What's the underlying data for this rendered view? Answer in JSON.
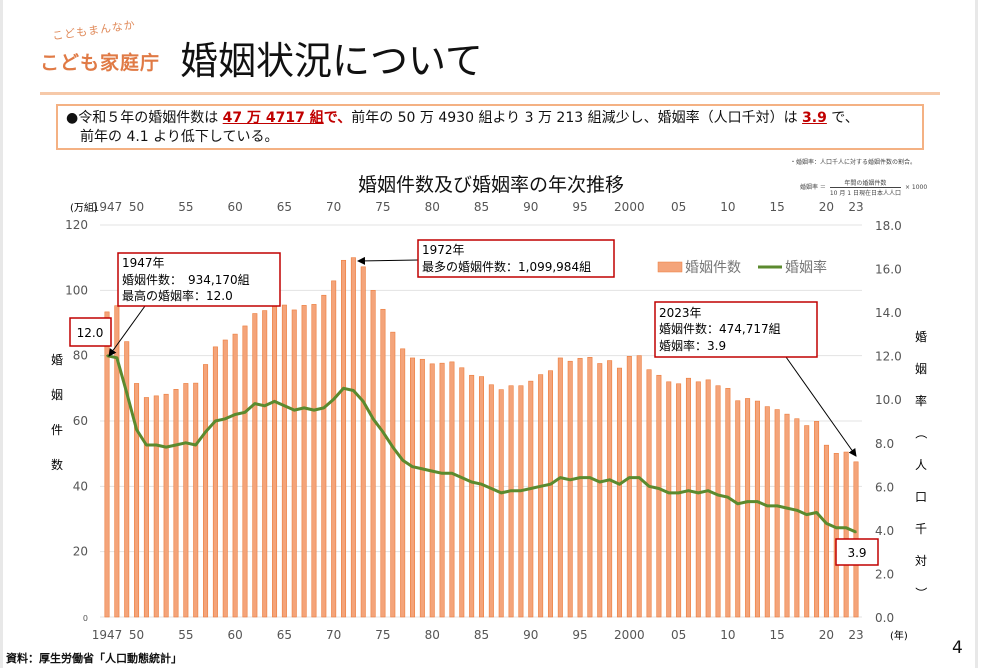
{
  "logo": {
    "tagline": "こどもまんなか",
    "name": "こども家庭庁"
  },
  "title": "婚姻状況について",
  "summary": {
    "bullet": "●",
    "p1": "令和５年の婚姻件数は ",
    "h1": "47 万 4717 組",
    "h1b": "で、",
    "p2": "前年の 50 万 4930 組より 3 万 213 組減少し、婚姻率（人口千対）は ",
    "h2": "3.9",
    "p3": " で、",
    "line2": "前年の 4.1 より低下している。"
  },
  "notes": {
    "definition": "・婚姻率：人口千人に対する婚姻件数の割合。",
    "formula_label": "婚姻率 ＝",
    "formula_num": "年間の婚姻件数",
    "formula_den": "10 月 1 日現在日本人人口",
    "formula_mult": "× 1000"
  },
  "footer": "資料：厚生労働省「人口動態統計」",
  "page_number": "4",
  "colors": {
    "bar": "#f4a47a",
    "bar_edge": "#ec7c3c",
    "line": "#5b8a2e",
    "callout_border": "#c00000",
    "accent": "#f4b183"
  },
  "chart_data": {
    "type": "bar+line",
    "title": "婚姻件数及び婚姻率の年次推移",
    "xlabel": "(年)",
    "ylabel_left_unit": "(万組)",
    "ylabel_left": "婚姻件数",
    "ylabel_right": "婚姻率（人口千対）",
    "ylim_left": [
      0,
      120
    ],
    "ylim_right": [
      0,
      18
    ],
    "yticks_left": [
      "0",
      "20",
      "40",
      "60",
      "80",
      "100",
      "120"
    ],
    "yticks_right": [
      "0.0",
      "2.0",
      "4.0",
      "6.0",
      "8.0",
      "10.0",
      "12.0",
      "14.0",
      "16.0",
      "18.0"
    ],
    "xtick_labels": [
      {
        "year": 1947,
        "label": "1947"
      },
      {
        "year": 1950,
        "label": "50"
      },
      {
        "year": 1955,
        "label": "55"
      },
      {
        "year": 1960,
        "label": "60"
      },
      {
        "year": 1965,
        "label": "65"
      },
      {
        "year": 1970,
        "label": "70"
      },
      {
        "year": 1975,
        "label": "75"
      },
      {
        "year": 1980,
        "label": "80"
      },
      {
        "year": 1985,
        "label": "85"
      },
      {
        "year": 1990,
        "label": "90"
      },
      {
        "year": 1995,
        "label": "95"
      },
      {
        "year": 2000,
        "label": "2000"
      },
      {
        "year": 2005,
        "label": "05"
      },
      {
        "year": 2010,
        "label": "10"
      },
      {
        "year": 2015,
        "label": "15"
      },
      {
        "year": 2020,
        "label": "20"
      },
      {
        "year": 2023,
        "label": "23"
      }
    ],
    "grid": true,
    "legend_position": "top-right",
    "x": [
      1947,
      1948,
      1949,
      1950,
      1951,
      1952,
      1953,
      1954,
      1955,
      1956,
      1957,
      1958,
      1959,
      1960,
      1961,
      1962,
      1963,
      1964,
      1965,
      1966,
      1967,
      1968,
      1969,
      1970,
      1971,
      1972,
      1973,
      1974,
      1975,
      1976,
      1977,
      1978,
      1979,
      1980,
      1981,
      1982,
      1983,
      1984,
      1985,
      1986,
      1987,
      1988,
      1989,
      1990,
      1991,
      1992,
      1993,
      1994,
      1995,
      1996,
      1997,
      1998,
      1999,
      2000,
      2001,
      2002,
      2003,
      2004,
      2005,
      2006,
      2007,
      2008,
      2009,
      2010,
      2011,
      2012,
      2013,
      2014,
      2015,
      2016,
      2017,
      2018,
      2019,
      2020,
      2021,
      2022,
      2023
    ],
    "series": [
      {
        "name": "婚姻件数",
        "type": "bar",
        "axis": "left",
        "values": [
          93.4,
          95.3,
          84.3,
          71.5,
          67.2,
          67.7,
          68.2,
          69.7,
          71.5,
          71.6,
          77.3,
          82.7,
          84.8,
          86.6,
          89.1,
          92.9,
          93.8,
          96.4,
          95.5,
          94.0,
          95.4,
          95.7,
          98.5,
          102.9,
          109.2,
          110.0,
          107.2,
          100.0,
          94.2,
          87.2,
          82.1,
          79.3,
          78.9,
          77.5,
          77.7,
          78.1,
          76.3,
          74.0,
          73.6,
          71.1,
          69.6,
          70.8,
          70.8,
          72.2,
          74.2,
          75.4,
          79.3,
          78.3,
          79.2,
          79.5,
          77.6,
          78.5,
          76.2,
          79.8,
          80.0,
          75.7,
          74.0,
          72.0,
          71.4,
          73.1,
          72.0,
          72.6,
          70.8,
          70.0,
          66.2,
          66.9,
          66.1,
          64.4,
          63.5,
          62.1,
          60.7,
          58.6,
          59.9,
          52.6,
          50.1,
          50.5,
          47.5
        ]
      },
      {
        "name": "婚姻率",
        "type": "line",
        "axis": "right",
        "values": [
          12.0,
          11.9,
          10.3,
          8.6,
          7.9,
          7.9,
          7.8,
          7.9,
          8.0,
          7.9,
          8.5,
          9.0,
          9.1,
          9.3,
          9.4,
          9.8,
          9.7,
          9.9,
          9.7,
          9.5,
          9.6,
          9.5,
          9.6,
          10.0,
          10.5,
          10.4,
          9.9,
          9.1,
          8.5,
          7.8,
          7.2,
          6.9,
          6.8,
          6.7,
          6.6,
          6.6,
          6.4,
          6.2,
          6.1,
          5.9,
          5.7,
          5.8,
          5.8,
          5.9,
          6.0,
          6.1,
          6.4,
          6.3,
          6.4,
          6.4,
          6.2,
          6.3,
          6.1,
          6.4,
          6.4,
          6.0,
          5.9,
          5.7,
          5.7,
          5.8,
          5.7,
          5.8,
          5.6,
          5.5,
          5.2,
          5.3,
          5.3,
          5.1,
          5.1,
          5.0,
          4.9,
          4.7,
          4.8,
          4.3,
          4.1,
          4.1,
          3.9
        ]
      }
    ],
    "annotations": {
      "a1947": {
        "l1": "1947年",
        "l2": "婚姻件数：　934,170組",
        "l3": "最高の婚姻率：12.0"
      },
      "a1972": {
        "l1": "1972年",
        "l2": "最多の婚姻件数：1,099,984組"
      },
      "a2023": {
        "l1": "2023年",
        "l2": "婚姻件数：474,717組",
        "l3": "婚姻率：3.9"
      },
      "label_start": "12.0",
      "label_end": "3.9"
    }
  }
}
